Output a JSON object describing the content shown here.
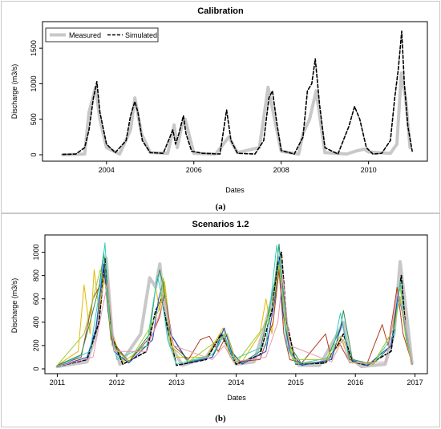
{
  "chart_data": [
    {
      "type": "line",
      "caption": "(a)",
      "title": "Calibration",
      "xlabel": "Dates",
      "ylabel": "Discharge (m3/s)",
      "xlim": [
        2002.7,
        2011.2
      ],
      "ylim": [
        0,
        1750
      ],
      "xticks": [
        2004,
        2006,
        2008,
        2010
      ],
      "yticks": [
        0,
        500,
        1000,
        1500
      ],
      "grid": false,
      "legend": {
        "placement": "top-left",
        "entries": [
          "Measured",
          "Simulated"
        ]
      },
      "series": [
        {
          "name": "Measured",
          "color": "#c8c8c8",
          "style": "solid-thick",
          "x": [
            2003.0,
            2003.5,
            2003.6,
            2003.75,
            2003.85,
            2004.0,
            2004.3,
            2004.55,
            2004.65,
            2004.8,
            2005.0,
            2005.4,
            2005.55,
            2005.62,
            2005.72,
            2005.8,
            2006.0,
            2006.5,
            2006.8,
            2007.0,
            2007.5,
            2007.7,
            2007.85,
            2008.0,
            2008.4,
            2008.5,
            2008.65,
            2008.8,
            2009.0,
            2009.5,
            2009.7,
            2009.9,
            2010.0,
            2010.5,
            2010.65,
            2010.75,
            2010.85,
            2010.95
          ],
          "y": [
            0,
            10,
            600,
            950,
            500,
            100,
            10,
            350,
            800,
            300,
            30,
            20,
            420,
            100,
            400,
            500,
            20,
            10,
            250,
            30,
            100,
            950,
            500,
            50,
            10,
            300,
            500,
            900,
            30,
            10,
            50,
            80,
            40,
            20,
            150,
            1150,
            800,
            100
          ]
        },
        {
          "name": "Simulated",
          "color": "#000000",
          "style": "dashed",
          "x": [
            2003.0,
            2003.3,
            2003.5,
            2003.6,
            2003.7,
            2003.78,
            2003.85,
            2004.0,
            2004.2,
            2004.45,
            2004.55,
            2004.65,
            2004.72,
            2004.82,
            2005.0,
            2005.3,
            2005.52,
            2005.58,
            2005.66,
            2005.76,
            2005.82,
            2005.95,
            2006.2,
            2006.6,
            2006.75,
            2006.85,
            2007.0,
            2007.4,
            2007.6,
            2007.72,
            2007.8,
            2007.9,
            2008.0,
            2008.3,
            2008.5,
            2008.6,
            2008.7,
            2008.78,
            2008.88,
            2009.0,
            2009.3,
            2009.55,
            2009.68,
            2009.8,
            2009.95,
            2010.1,
            2010.3,
            2010.5,
            2010.6,
            2010.68,
            2010.76,
            2010.82,
            2010.9,
            2011.0
          ],
          "y": [
            5,
            10,
            100,
            350,
            800,
            1030,
            600,
            150,
            30,
            200,
            550,
            750,
            600,
            200,
            30,
            20,
            350,
            150,
            300,
            550,
            300,
            50,
            20,
            10,
            630,
            200,
            20,
            10,
            200,
            800,
            900,
            450,
            60,
            10,
            250,
            900,
            1000,
            1350,
            700,
            100,
            10,
            400,
            680,
            500,
            100,
            10,
            20,
            200,
            800,
            1200,
            1740,
            1000,
            400,
            50
          ]
        }
      ]
    },
    {
      "type": "line",
      "caption": "(b)",
      "title": "Scenarios 1.2",
      "xlabel": "Dates",
      "ylabel": "Discharge (m3/s)",
      "xlim": [
        2010.9,
        2017.1
      ],
      "ylim": [
        0,
        1100
      ],
      "xticks": [
        2011,
        2012,
        2013,
        2014,
        2015,
        2016,
        2017
      ],
      "yticks": [
        0,
        200,
        400,
        600,
        800,
        1000
      ],
      "grid": false,
      "series": [
        {
          "color": "#c8c8c8",
          "style": "solid-thick",
          "x": [
            2011.0,
            2011.5,
            2011.65,
            2011.75,
            2011.82,
            2011.92,
            2012.05,
            2012.4,
            2012.55,
            2012.65,
            2012.72,
            2012.8,
            2012.9,
            2013.1,
            2013.5,
            2013.75,
            2013.85,
            2014.0,
            2014.3,
            2014.5,
            2014.65,
            2014.72,
            2014.82,
            2014.9,
            2015.05,
            2015.4,
            2015.7,
            2015.8,
            2015.9,
            2016.1,
            2016.5,
            2016.65,
            2016.75,
            2016.85,
            2016.95
          ],
          "y": [
            20,
            60,
            300,
            700,
            950,
            300,
            40,
            300,
            780,
            700,
            900,
            500,
            200,
            30,
            100,
            300,
            200,
            40,
            60,
            400,
            700,
            950,
            400,
            150,
            30,
            30,
            300,
            400,
            100,
            20,
            40,
            300,
            920,
            500,
            50
          ]
        },
        {
          "color": "#000000",
          "style": "dashed",
          "x": [
            2011.0,
            2011.5,
            2011.7,
            2011.8,
            2011.9,
            2012.1,
            2012.5,
            2012.65,
            2012.75,
            2012.85,
            2013.0,
            2013.5,
            2013.75,
            2013.85,
            2014.0,
            2014.4,
            2014.6,
            2014.7,
            2014.76,
            2014.85,
            2015.0,
            2015.5,
            2015.7,
            2015.8,
            2015.95,
            2016.2,
            2016.6,
            2016.7,
            2016.77,
            2016.85,
            2016.95
          ],
          "y": [
            20,
            80,
            400,
            950,
            300,
            40,
            150,
            500,
            600,
            350,
            30,
            80,
            300,
            200,
            40,
            120,
            500,
            900,
            1000,
            400,
            40,
            50,
            200,
            300,
            60,
            30,
            150,
            550,
            800,
            300,
            40
          ]
        },
        {
          "color": "#e6b800",
          "style": "solid",
          "x": [
            2011.0,
            2011.35,
            2011.45,
            2011.55,
            2011.62,
            2011.7,
            2011.82,
            2011.92,
            2012.1,
            2012.5,
            2012.65,
            2012.72,
            2012.8,
            2012.95,
            2013.5,
            2013.78,
            2013.9,
            2014.1,
            2014.4,
            2014.5,
            2014.6,
            2014.72,
            2014.85,
            2015.0,
            2015.5,
            2015.8,
            2015.95,
            2016.3,
            2016.6,
            2016.75,
            2016.85,
            2016.95
          ],
          "y": [
            30,
            150,
            720,
            300,
            850,
            500,
            900,
            300,
            60,
            200,
            700,
            500,
            750,
            100,
            100,
            350,
            100,
            60,
            300,
            600,
            300,
            850,
            300,
            50,
            60,
            250,
            50,
            50,
            300,
            700,
            300,
            50
          ]
        },
        {
          "color": "#b23a1e",
          "style": "solid",
          "x": [
            2011.0,
            2011.4,
            2011.6,
            2011.8,
            2011.9,
            2012.2,
            2012.6,
            2012.72,
            2012.8,
            2012.95,
            2013.2,
            2013.4,
            2013.55,
            2013.7,
            2013.85,
            2014.0,
            2014.4,
            2014.62,
            2014.72,
            2014.8,
            2014.9,
            2015.1,
            2015.5,
            2015.6,
            2015.7,
            2015.9,
            2016.2,
            2016.45,
            2016.55,
            2016.7,
            2016.8,
            2016.95
          ],
          "y": [
            30,
            100,
            600,
            800,
            250,
            60,
            300,
            450,
            650,
            200,
            80,
            250,
            280,
            150,
            300,
            60,
            80,
            400,
            850,
            300,
            80,
            50,
            300,
            80,
            250,
            60,
            50,
            380,
            200,
            700,
            300,
            50
          ]
        },
        {
          "color": "#2e8b57",
          "style": "solid",
          "x": [
            2011.0,
            2011.4,
            2011.55,
            2011.7,
            2011.78,
            2011.85,
            2011.95,
            2012.2,
            2012.55,
            2012.65,
            2012.72,
            2012.78,
            2012.9,
            2013.2,
            2013.6,
            2013.8,
            2013.9,
            2014.1,
            2014.4,
            2014.55,
            2014.65,
            2014.72,
            2014.78,
            2014.9,
            2015.1,
            2015.5,
            2015.75,
            2015.8,
            2015.95,
            2016.3,
            2016.6,
            2016.72,
            2016.8,
            2016.95
          ],
          "y": [
            30,
            120,
            400,
            700,
            1000,
            600,
            200,
            60,
            300,
            700,
            850,
            700,
            300,
            60,
            100,
            300,
            150,
            50,
            150,
            500,
            750,
            1070,
            700,
            200,
            40,
            60,
            350,
            500,
            80,
            40,
            200,
            620,
            500,
            50
          ]
        },
        {
          "color": "#1f3fbf",
          "style": "solid",
          "x": [
            2011.0,
            2011.5,
            2011.65,
            2011.78,
            2011.85,
            2011.95,
            2012.2,
            2012.6,
            2012.7,
            2012.78,
            2012.9,
            2013.2,
            2013.6,
            2013.8,
            2013.92,
            2014.1,
            2014.5,
            2014.65,
            2014.72,
            2014.78,
            2014.9,
            2015.1,
            2015.6,
            2015.78,
            2015.9,
            2016.2,
            2016.6,
            2016.72,
            2016.8,
            2016.95
          ],
          "y": [
            20,
            100,
            350,
            900,
            500,
            150,
            50,
            250,
            600,
            750,
            300,
            50,
            100,
            350,
            150,
            40,
            150,
            600,
            950,
            500,
            150,
            30,
            80,
            400,
            80,
            30,
            200,
            650,
            450,
            40
          ]
        },
        {
          "color": "#30d0c0",
          "style": "solid",
          "x": [
            2011.0,
            2011.55,
            2011.72,
            2011.8,
            2011.88,
            2012.0,
            2012.5,
            2012.68,
            2012.76,
            2012.85,
            2013.0,
            2013.6,
            2013.8,
            2013.95,
            2014.5,
            2014.68,
            2014.75,
            2014.85,
            2015.0,
            2015.6,
            2015.75,
            2015.8,
            2015.9,
            2016.3,
            2016.65,
            2016.75,
            2016.85,
            2016.95
          ],
          "y": [
            20,
            150,
            700,
            1080,
            400,
            80,
            200,
            800,
            600,
            250,
            40,
            120,
            300,
            80,
            200,
            1060,
            800,
            200,
            40,
            100,
            480,
            350,
            60,
            40,
            300,
            750,
            300,
            40
          ]
        },
        {
          "color": "#9acd32",
          "style": "solid",
          "x": [
            2011.0,
            2011.45,
            2011.6,
            2011.72,
            2011.82,
            2011.92,
            2012.2,
            2012.55,
            2012.7,
            2012.78,
            2012.9,
            2013.2,
            2013.7,
            2013.85,
            2014.0,
            2014.45,
            2014.62,
            2014.72,
            2014.82,
            2014.95,
            2015.5,
            2015.75,
            2015.9,
            2016.3,
            2016.65,
            2016.75,
            2016.85,
            2016.95
          ],
          "y": [
            30,
            300,
            600,
            850,
            700,
            200,
            60,
            350,
            500,
            780,
            200,
            60,
            250,
            300,
            50,
            350,
            550,
            900,
            400,
            80,
            80,
            280,
            60,
            40,
            350,
            620,
            250,
            40
          ]
        },
        {
          "color": "#e89ab0",
          "style": "solid",
          "x": [
            2011.0,
            2011.6,
            2011.75,
            2011.85,
            2011.95,
            2012.5,
            2012.7,
            2012.8,
            2012.95,
            2013.6,
            2013.8,
            2013.95,
            2014.5,
            2014.7,
            2014.78,
            2014.9,
            2015.6,
            2015.78,
            2015.9,
            2016.5,
            2016.6,
            2016.7,
            2016.8,
            2016.95
          ],
          "y": [
            20,
            100,
            500,
            750,
            150,
            150,
            450,
            600,
            200,
            80,
            200,
            60,
            100,
            400,
            800,
            200,
            60,
            250,
            50,
            60,
            300,
            650,
            500,
            40
          ]
        }
      ]
    }
  ]
}
